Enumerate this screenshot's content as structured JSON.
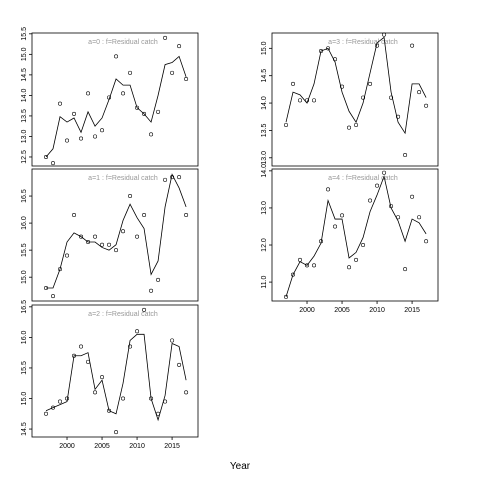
{
  "x_label": "Year",
  "chart_data": [
    {
      "type": "line",
      "title": "a=0  :  f=Residual catch",
      "x": [
        1997,
        1998,
        1999,
        2000,
        2001,
        2002,
        2003,
        2004,
        2005,
        2006,
        2007,
        2008,
        2009,
        2010,
        2011,
        2012,
        2013,
        2014,
        2015,
        2016,
        2017
      ],
      "xlim": [
        1995,
        2018.7
      ],
      "ylim": [
        12.28,
        15.52
      ],
      "yticks": [
        {
          "value": 12.5,
          "label": "12.5"
        },
        {
          "value": 13,
          "label": "13.0"
        },
        {
          "value": 13.5,
          "label": "13.5"
        },
        {
          "value": 14,
          "label": "14.0"
        },
        {
          "value": 14.5,
          "label": "14.5"
        },
        {
          "value": 15,
          "label": "15.0"
        },
        {
          "value": 15.5,
          "label": "15.5"
        }
      ],
      "series": [
        {
          "style": "line",
          "color": "#000000",
          "values": [
            12.5,
            12.7,
            13.48,
            13.35,
            13.45,
            13.1,
            13.6,
            13.25,
            13.45,
            13.9,
            14.4,
            14.25,
            14.25,
            13.7,
            13.55,
            13.35,
            14.0,
            14.75,
            14.8,
            14.95,
            14.45
          ]
        },
        {
          "style": "points",
          "color": "#000000",
          "values": [
            12.5,
            12.35,
            13.8,
            12.9,
            13.55,
            12.95,
            14.05,
            13.0,
            13.15,
            13.95,
            14.95,
            14.05,
            14.55,
            13.7,
            13.55,
            13.05,
            13.6,
            15.4,
            14.55,
            15.2,
            14.4
          ]
        }
      ]
    },
    {
      "type": "line",
      "title": "a=1  :  f=Residual catch",
      "x": [
        1997,
        1998,
        1999,
        2000,
        2001,
        2002,
        2003,
        2004,
        2005,
        2006,
        2007,
        2008,
        2009,
        2010,
        2011,
        2012,
        2013,
        2014,
        2015,
        2016,
        2017
      ],
      "xlim": [
        1995,
        2018.7
      ],
      "ylim": [
        14.56,
        17.0
      ],
      "yticks": [
        {
          "value": 15,
          "label": "15.0"
        },
        {
          "value": 15.5,
          "label": "15.5"
        },
        {
          "value": 16,
          "label": "16.0"
        },
        {
          "value": 16.5,
          "label": "16.5"
        }
      ],
      "series": [
        {
          "style": "line",
          "color": "#000000",
          "values": [
            14.8,
            14.8,
            15.15,
            15.65,
            15.82,
            15.75,
            15.65,
            15.65,
            15.55,
            15.5,
            15.6,
            16.05,
            16.35,
            16.1,
            15.9,
            15.05,
            15.3,
            16.3,
            16.9,
            16.65,
            16.3
          ]
        },
        {
          "style": "points",
          "color": "#000000",
          "values": [
            14.8,
            14.65,
            15.15,
            15.4,
            16.15,
            15.75,
            15.65,
            15.75,
            15.6,
            15.6,
            15.5,
            15.85,
            16.5,
            15.75,
            16.15,
            14.75,
            14.95,
            16.8,
            16.85,
            16.85,
            16.15
          ]
        }
      ]
    },
    {
      "type": "line",
      "title": "a=2  :  f=Residual catch",
      "x": [
        1997,
        1998,
        1999,
        2000,
        2001,
        2002,
        2003,
        2004,
        2005,
        2006,
        2007,
        2008,
        2009,
        2010,
        2011,
        2012,
        2013,
        2014,
        2015,
        2016,
        2017
      ],
      "xlim": [
        1995,
        2018.7
      ],
      "ylim": [
        14.37,
        16.53
      ],
      "xticks": [
        2000,
        2005,
        2010,
        2015
      ],
      "yticks": [
        {
          "value": 14.5,
          "label": "14.5"
        },
        {
          "value": 15,
          "label": "15.0"
        },
        {
          "value": 15.5,
          "label": "15.5"
        },
        {
          "value": 16,
          "label": "16.0"
        },
        {
          "value": 16.5,
          "label": "16.5"
        }
      ],
      "series": [
        {
          "style": "line",
          "color": "#000000",
          "values": [
            14.8,
            14.85,
            14.9,
            14.95,
            15.7,
            15.7,
            15.75,
            15.15,
            15.3,
            14.8,
            14.75,
            15.25,
            15.95,
            16.05,
            16.05,
            15.0,
            14.65,
            15.05,
            15.9,
            15.85,
            15.3
          ]
        },
        {
          "style": "points",
          "color": "#000000",
          "values": [
            14.75,
            14.85,
            14.95,
            15.0,
            15.7,
            15.85,
            15.6,
            15.1,
            15.35,
            14.8,
            14.45,
            15.0,
            15.85,
            16.1,
            16.45,
            15.0,
            14.75,
            14.95,
            15.95,
            15.55,
            15.1
          ]
        }
      ]
    },
    {
      "type": "line",
      "title": "a=3  :  f=Residual catch",
      "x": [
        1997,
        1998,
        1999,
        2000,
        2001,
        2002,
        2003,
        2004,
        2005,
        2006,
        2007,
        2008,
        2009,
        2010,
        2011,
        2012,
        2013,
        2014,
        2015,
        2016,
        2017
      ],
      "xlim": [
        1995,
        2018.7
      ],
      "ylim": [
        12.85,
        15.28
      ],
      "yticks": [
        {
          "value": 13,
          "label": "13.0"
        },
        {
          "value": 13.5,
          "label": "13.5"
        },
        {
          "value": 14,
          "label": "14.0"
        },
        {
          "value": 14.5,
          "label": "14.5"
        },
        {
          "value": 15,
          "label": "15.0"
        }
      ],
      "series": [
        {
          "style": "line",
          "color": "#000000",
          "values": [
            13.65,
            14.2,
            14.15,
            14.0,
            14.35,
            14.95,
            15.0,
            14.75,
            14.2,
            13.85,
            13.65,
            14.0,
            14.55,
            15.1,
            15.2,
            14.2,
            13.65,
            13.45,
            14.35,
            14.35,
            14.1
          ]
        },
        {
          "style": "points",
          "color": "#000000",
          "values": [
            13.6,
            14.35,
            14.05,
            14.05,
            14.05,
            14.95,
            15.0,
            14.8,
            14.3,
            13.55,
            13.6,
            14.1,
            14.35,
            15.05,
            15.25,
            14.1,
            13.75,
            13.05,
            15.05,
            14.2,
            13.95
          ]
        }
      ]
    },
    {
      "type": "line",
      "title": "a=4  :  f=Residual catch",
      "x": [
        1997,
        1998,
        1999,
        2000,
        2001,
        2002,
        2003,
        2004,
        2005,
        2006,
        2007,
        2008,
        2009,
        2010,
        2011,
        2012,
        2013,
        2014,
        2015,
        2016,
        2017
      ],
      "xlim": [
        1995,
        2018.7
      ],
      "ylim": [
        10.49,
        14.05
      ],
      "xticks": [
        2000,
        2005,
        2010,
        2015
      ],
      "yticks": [
        {
          "value": 11,
          "label": "11.0"
        },
        {
          "value": 12,
          "label": "12.0"
        },
        {
          "value": 13,
          "label": "13.0"
        },
        {
          "value": 14,
          "label": "14.0"
        }
      ],
      "series": [
        {
          "style": "line",
          "color": "#000000",
          "values": [
            10.6,
            11.2,
            11.55,
            11.45,
            11.7,
            12.05,
            13.2,
            12.7,
            12.7,
            11.65,
            11.8,
            12.2,
            12.9,
            13.35,
            13.85,
            13.0,
            12.65,
            12.1,
            12.7,
            12.6,
            12.3
          ]
        },
        {
          "style": "points",
          "color": "#000000",
          "values": [
            10.6,
            11.2,
            11.6,
            11.45,
            11.45,
            12.1,
            13.5,
            12.5,
            12.8,
            11.4,
            11.6,
            12.0,
            13.2,
            13.6,
            13.95,
            13.05,
            12.75,
            11.35,
            13.3,
            12.75,
            12.1
          ]
        }
      ]
    }
  ]
}
